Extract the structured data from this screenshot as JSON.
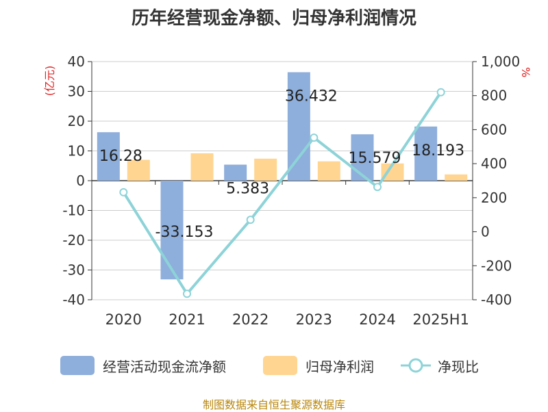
{
  "title": "历年经营现金净额、归母净利润情况",
  "source_note": "制图数据来自恒生聚源数据库",
  "chart_data": {
    "type": "bar",
    "categories": [
      "2020",
      "2021",
      "2022",
      "2023",
      "2024",
      "2025H1"
    ],
    "series": [
      {
        "name": "经营活动现金流净额",
        "type": "bar",
        "axis": "left",
        "color": "#8eaedb",
        "values": [
          16.28,
          -33.153,
          5.383,
          36.432,
          15.579,
          18.193
        ]
      },
      {
        "name": "归母净利润",
        "type": "bar",
        "axis": "left",
        "color": "#ffd591",
        "values": [
          7.0,
          9.2,
          7.4,
          6.5,
          5.8,
          2.1
        ]
      },
      {
        "name": "净现比",
        "type": "line",
        "axis": "right",
        "color": "#8dd3d8",
        "values": [
          232,
          -365,
          70,
          553,
          263,
          820
        ]
      }
    ],
    "data_labels": [
      "16.28",
      "-33.153",
      "5.383",
      "36.432",
      "15.579",
      "18.193"
    ],
    "y_left": {
      "label": "(亿元)",
      "min": -40,
      "max": 40,
      "ticks": [
        "40",
        "30",
        "20",
        "10",
        "0",
        "-10",
        "-20",
        "-30",
        "-40"
      ]
    },
    "y_right": {
      "label": "%",
      "min": -400,
      "max": 1000,
      "ticks": [
        "1,000",
        "800",
        "600",
        "400",
        "200",
        "0",
        "-200",
        "-400"
      ]
    },
    "grid": true,
    "legend_position": "bottom"
  }
}
